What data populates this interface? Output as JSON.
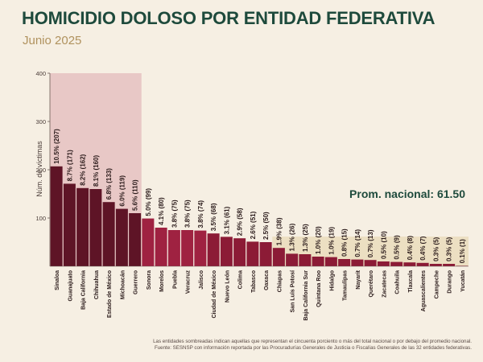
{
  "header": {
    "title": "HOMICIDIO DOLOSO POR ENTIDAD FEDERATIVA",
    "subtitle": "Junio 2025"
  },
  "colors": {
    "background": "#f6efe3",
    "title": "#1e4a3c",
    "subtitle": "#b0925e",
    "bar_high": "#5e1426",
    "bar_mid": "#9f2241",
    "bar_low": "#8c1b36",
    "highlight_high": "#e8c8c6",
    "highlight_low": "#ecdfc2"
  },
  "chart_data": {
    "type": "bar",
    "title": "",
    "xlabel": "",
    "ylabel": "Núm. de víctimas",
    "ylim": [
      0,
      400
    ],
    "yticks": [
      100,
      200,
      300,
      400
    ],
    "grid": false,
    "categories": [
      "Sinaloa",
      "Guanajuato",
      "Baja California",
      "Chihuahua",
      "Estado de México",
      "Michoacán",
      "Guerrero",
      "Sonora",
      "Morelos",
      "Puebla",
      "Veracruz",
      "Jalisco",
      "Ciudad de México",
      "Nuevo León",
      "Colima",
      "Tabasco",
      "Oaxaca",
      "Chiapas",
      "San Luis Potosí",
      "Baja California Sur",
      "Quintana Roo",
      "Hidalgo",
      "Tamaulipas",
      "Nayarit",
      "Querétaro",
      "Zacatecas",
      "Coahuila",
      "Tlaxcala",
      "Aguascalientes",
      "Campeche",
      "Durango",
      "Yucatán"
    ],
    "values": [
      207,
      171,
      162,
      160,
      133,
      119,
      110,
      99,
      80,
      75,
      75,
      74,
      68,
      61,
      58,
      51,
      50,
      38,
      26,
      25,
      20,
      19,
      15,
      14,
      13,
      10,
      9,
      8,
      7,
      5,
      5,
      1
    ],
    "data_labels": [
      "10.5% (207)",
      "8.7% (171)",
      "8.2% (162)",
      "8.1% (160)",
      "6.8% (133)",
      "6.0% (119)",
      "5.6% (110)",
      "5.0% (99)",
      "4.1% (80)",
      "3.8% (75)",
      "3.8% (75)",
      "3.8% (74)",
      "3.5% (68)",
      "3.1% (61)",
      "2.9% (58)",
      "2.6% (51)",
      "2.5% (50)",
      "1.9% (38)",
      "1.3% (26)",
      "1.3% (25)",
      "1.0% (20)",
      "1.0% (19)",
      "0.8% (15)",
      "0.7% (14)",
      "0.7% (13)",
      "0.5% (10)",
      "0.5% (9)",
      "0.4% (8)",
      "0.4% (7)",
      "0.3% (5)",
      "0.3% (5)",
      "0.1% (1)"
    ],
    "high_group_count": 7,
    "low_group_start": 17,
    "average_value": 61.5,
    "average_label": "Prom. nacional: 61.50"
  },
  "footnote": {
    "line1": "Las entidades sombreadas indican aquellas que representan el cincuenta porciento o más del total nacional o por debajo del promedio nacional.",
    "line2": "Fuente: SESNSP con información reportada por las Procuradurías Generales de Justicia o Fiscalías Generales de las 32 entidades federativas."
  }
}
